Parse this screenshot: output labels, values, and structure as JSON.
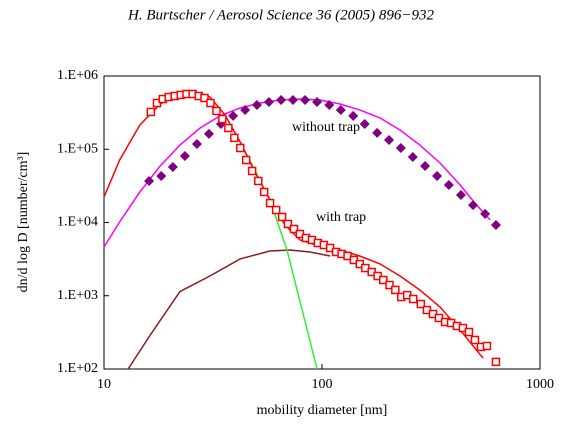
{
  "chart_data": {
    "type": "scatter",
    "title": "H. Burtscher / Aerosol Science 36 (2005) 896−932",
    "x_label": "mobility diameter [nm]",
    "y_label": "dn/d log D [number/cm³]",
    "xscale": "log",
    "yscale": "log",
    "xlim": [
      10,
      1000
    ],
    "ylim": [
      100,
      1000000
    ],
    "xticks": [
      10,
      100,
      1000
    ],
    "yticks": [
      {
        "value": 100,
        "label": "1.E+02"
      },
      {
        "value": 1000,
        "label": "1.E+03"
      },
      {
        "value": 10000,
        "label": "1.E+04"
      },
      {
        "value": 100000,
        "label": "1.E+05"
      },
      {
        "value": 1000000,
        "label": "1.E+06"
      }
    ],
    "grid": false,
    "annotations": [
      "without trap",
      "with trap"
    ],
    "series": [
      {
        "type": "line",
        "color": "#ff00ff",
        "x": [
          10,
          11.8,
          14.6,
          18.1,
          22.3,
          27.6,
          34.0,
          42.1,
          51.9,
          64.2,
          79.3,
          97.9,
          121,
          149,
          185,
          228,
          281,
          348,
          430,
          503,
          590
        ],
        "values": [
          4630,
          10200,
          26100,
          59000,
          114000,
          195000,
          285000,
          366000,
          428000,
          470000,
          485000,
          470000,
          415000,
          344000,
          267000,
          183000,
          114000,
          64900,
          32500,
          18400,
          10800
        ]
      },
      {
        "type": "line",
        "color": "#8b1a1a",
        "x": [
          12.9,
          16.3,
          22.3,
          30.6,
          42.1,
          57.7,
          71.3,
          88.1,
          109
        ],
        "values": [
          100,
          291,
          1140,
          1860,
          3180,
          4080,
          4210,
          3960,
          3490
        ]
      },
      {
        "type": "line",
        "color": "#33ee33",
        "x": [
          42.1,
          57.7,
          69.1,
          94.9
        ],
        "values": [
          126000,
          20300,
          4210,
          100
        ]
      },
      {
        "type": "line",
        "color": "#ff0000",
        "x": [
          10,
          11.8,
          14.6,
          18.1,
          22.3,
          26.1,
          30.6,
          35.9,
          42.1,
          49.3,
          57.7,
          67.7,
          79.3,
          97.9,
          121,
          149,
          185,
          228,
          281,
          348,
          430,
          548
        ],
        "values": [
          22300,
          71300,
          214000,
          415000,
          568000,
          605000,
          516000,
          294000,
          126000,
          48900,
          20300,
          9250,
          5770,
          4780,
          4210,
          3490,
          2710,
          1860,
          1200,
          702,
          340,
          141
        ]
      },
      {
        "type": "scatter",
        "marker": "diamond",
        "color": "#800080",
        "x": [
          16.1,
          18.3,
          20.7,
          23.5,
          26.7,
          30.3,
          34.4,
          39.1,
          44.4,
          50.3,
          57.1,
          64.9,
          73.6,
          83.6,
          94.9,
          108,
          122,
          139,
          157,
          179,
          203,
          230,
          261,
          297,
          337,
          382,
          434,
          493,
          560,
          628
        ],
        "values": [
          36900,
          43100,
          57300,
          80900,
          118000,
          162000,
          221000,
          285000,
          344000,
          402000,
          442000,
          470000,
          470000,
          470000,
          442000,
          402000,
          344000,
          285000,
          221000,
          167000,
          134000,
          104000,
          78300,
          59000,
          43100,
          32500,
          23700,
          17300,
          13100,
          9250
        ]
      },
      {
        "type": "scatter",
        "marker": "square",
        "color": "#ff0000",
        "x": [
          16.4,
          17.5,
          18.6,
          19.8,
          21.1,
          22.5,
          23.9,
          25.5,
          27.2,
          28.9,
          30.8,
          32.8,
          34.9,
          37.2,
          39.6,
          42.2,
          44.9,
          47.8,
          51.0,
          54.3,
          57.8,
          61.6,
          65.6,
          69.8,
          74.4,
          79.2,
          84.4,
          89.9,
          95.7,
          102,
          109,
          116,
          123,
          131,
          140,
          149,
          158,
          169,
          180,
          191,
          204,
          217,
          231,
          246,
          262,
          284,
          303,
          323,
          344,
          367,
          391,
          416,
          443,
          472,
          503,
          536,
          571,
          628
        ],
        "values": [
          323000,
          428000,
          485000,
          516000,
          533000,
          551000,
          568000,
          568000,
          533000,
          501000,
          428000,
          333000,
          259000,
          195000,
          143000,
          104000,
          71300,
          50500,
          36900,
          26100,
          18400,
          14800,
          11900,
          9550,
          8150,
          6970,
          6140,
          5770,
          5250,
          4930,
          4490,
          3960,
          3720,
          3490,
          3080,
          2710,
          2390,
          2110,
          1860,
          1640,
          1400,
          1200,
          961,
          1020,
          903,
          771,
          638,
          563,
          497,
          438,
          425,
          386,
          363,
          320,
          249,
          200,
          206,
          125
        ]
      }
    ]
  }
}
